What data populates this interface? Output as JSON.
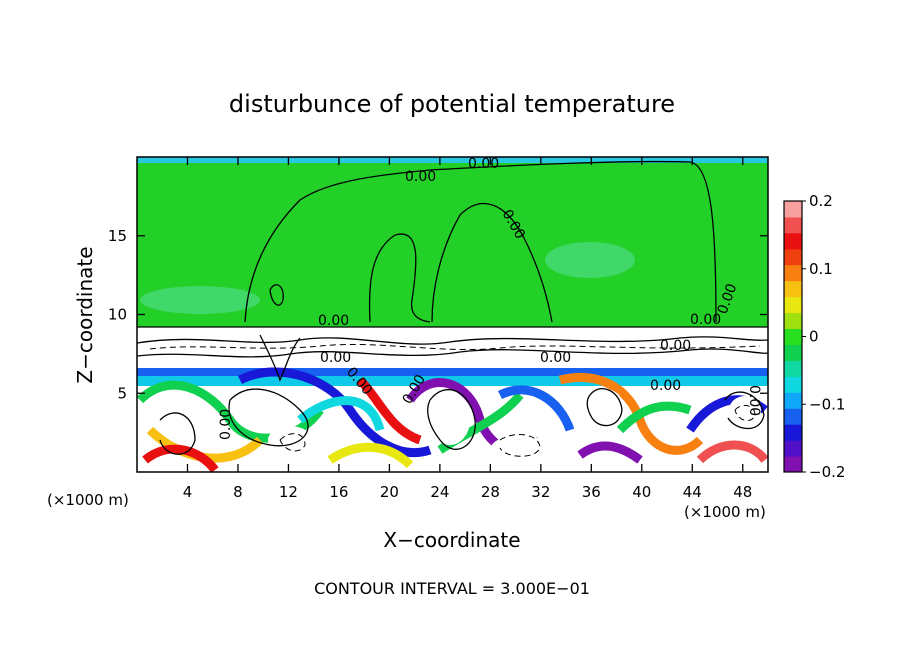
{
  "chart_data": {
    "type": "heatmap",
    "title": "disturbunce of potential temperature",
    "xlabel": "X−coordinate",
    "ylabel": "Z−coordinate",
    "x_unit_left": "(×1000 m)",
    "x_unit_right": "(×1000 m)",
    "xlim": [
      0,
      50
    ],
    "ylim": [
      0,
      20
    ],
    "x_ticks": [
      4,
      8,
      12,
      16,
      20,
      24,
      28,
      32,
      36,
      40,
      44,
      48
    ],
    "x_tick_labels": [
      "4",
      "8",
      "12",
      "16",
      "20",
      "24",
      "28",
      "32",
      "36",
      "40",
      "44",
      "48"
    ],
    "y_ticks": [
      5,
      10,
      15
    ],
    "y_tick_labels": [
      "5",
      "10",
      "15"
    ],
    "colorbar": {
      "range": [
        -0.2,
        0.2
      ],
      "ticks": [
        0.2,
        0.1,
        0,
        -0.1,
        -0.2
      ],
      "tick_labels": [
        "0.2",
        "0.1",
        "0",
        "−0.1",
        "−0.2"
      ],
      "colors": [
        "#8010b0",
        "#5010c8",
        "#1818d8",
        "#1860f0",
        "#10a8f8",
        "#10d8e0",
        "#10d8a0",
        "#10d050",
        "#28e020",
        "#a0e010",
        "#e8e810",
        "#f8c010",
        "#f88010",
        "#f04010",
        "#e81010",
        "#f05050",
        "#f8a0a0"
      ]
    },
    "contour_labels": [
      "0.00",
      "0.00",
      "0.00",
      "0.00",
      "0.00",
      "0.00",
      "0.00",
      "0.00",
      "0.00",
      "0.00",
      "0.00",
      "0.00",
      "0.00",
      "0.00"
    ],
    "footer": "CONTOUR INTERVAL = 3.000E−01"
  }
}
